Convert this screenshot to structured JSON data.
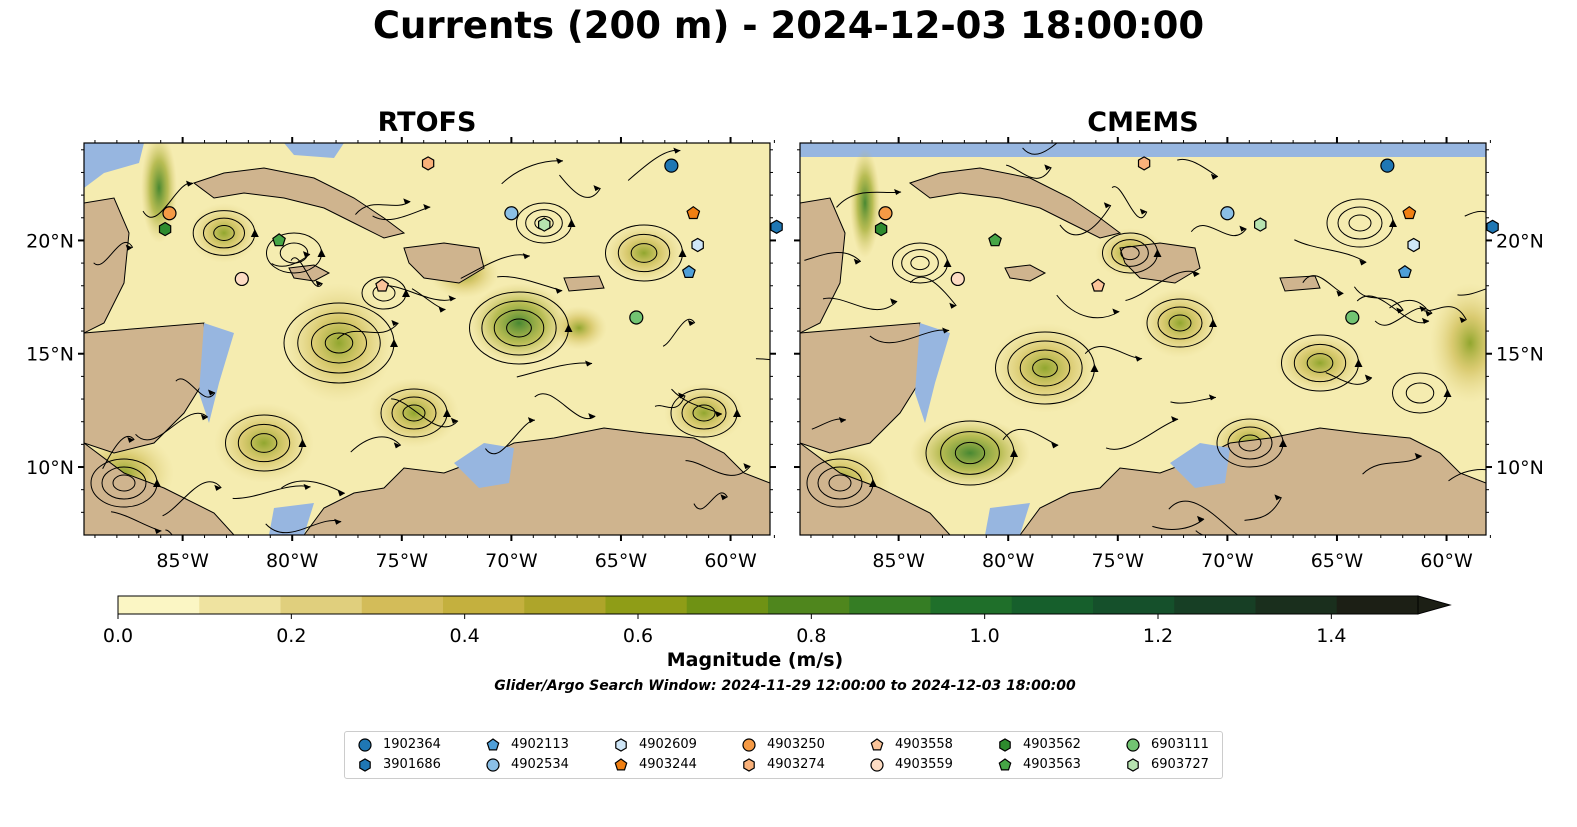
{
  "title": "Currents (200 m) - 2024-12-03 18:00:00",
  "panels": [
    {
      "title": "RTOFS"
    },
    {
      "title": "CMEMS"
    }
  ],
  "axes": {
    "lon_ticks": [
      "85°W",
      "80°W",
      "75°W",
      "70°W",
      "65°W",
      "60°W"
    ],
    "lat_ticks": [
      "20°N",
      "15°N",
      "10°N"
    ]
  },
  "colorbar": {
    "label": "Magnitude (m/s)",
    "ticks": [
      "0.0",
      "0.2",
      "0.4",
      "0.6",
      "0.8",
      "1.0",
      "1.2",
      "1.4"
    ],
    "range": [
      0.0,
      1.5
    ],
    "extend": "max",
    "colors": [
      "#fbf6c4",
      "#efe3a0",
      "#e0cf7d",
      "#d3bc59",
      "#c4b03e",
      "#aea52a",
      "#8f9d17",
      "#6f9214",
      "#4f861d",
      "#357d24",
      "#1f6f2a",
      "#165f2c",
      "#15502b",
      "#173f25",
      "#1a2f1d",
      "#1c1f15"
    ]
  },
  "search_window": "Glider/Argo Search Window: 2024-11-29 12:00:00 to 2024-12-03 18:00:00",
  "colors": {
    "ocean": "#97b6e0",
    "land": "#cfb48e",
    "weak_current": "#fbf6c4",
    "strong_current": "#1c1f15"
  },
  "floats": [
    {
      "id": "1902364",
      "marker": "circle",
      "color": "#1f77b4"
    },
    {
      "id": "3901686",
      "marker": "hexagon",
      "color": "#1f77b4"
    },
    {
      "id": "4902113",
      "marker": "pentagon",
      "color": "#4f9fd8"
    },
    {
      "id": "4902534",
      "marker": "circle",
      "color": "#8bbfe6"
    },
    {
      "id": "4902609",
      "marker": "hexagon",
      "color": "#cfe6f7"
    },
    {
      "id": "4903244",
      "marker": "pentagon",
      "color": "#f07f12"
    },
    {
      "id": "4903250",
      "marker": "circle",
      "color": "#f59a45"
    },
    {
      "id": "4903274",
      "marker": "hexagon",
      "color": "#f9b17a"
    },
    {
      "id": "4903558",
      "marker": "pentagon",
      "color": "#fbc499"
    },
    {
      "id": "4903559",
      "marker": "circle",
      "color": "#fddcc3"
    },
    {
      "id": "4903562",
      "marker": "hexagon",
      "color": "#2e8b2e"
    },
    {
      "id": "4903563",
      "marker": "pentagon",
      "color": "#46a546"
    },
    {
      "id": "6903111",
      "marker": "circle",
      "color": "#72c472"
    },
    {
      "id": "6903727",
      "marker": "hexagon",
      "color": "#b7e3b0"
    }
  ],
  "float_positions": [
    {
      "id": "1902364",
      "lon": -62.7,
      "lat": 23.3
    },
    {
      "id": "3901686",
      "lon": -57.9,
      "lat": 20.6
    },
    {
      "id": "4902113",
      "lon": -61.9,
      "lat": 18.6
    },
    {
      "id": "4902534",
      "lon": -70.0,
      "lat": 21.2
    },
    {
      "id": "4902609",
      "lon": -61.5,
      "lat": 19.8
    },
    {
      "id": "4903244",
      "lon": -61.7,
      "lat": 21.2
    },
    {
      "id": "4903250",
      "lon": -85.6,
      "lat": 21.2
    },
    {
      "id": "4903274",
      "lon": -73.8,
      "lat": 23.4
    },
    {
      "id": "4903558",
      "lon": -75.9,
      "lat": 18.0
    },
    {
      "id": "4903559",
      "lon": -82.3,
      "lat": 18.3
    },
    {
      "id": "4903562",
      "lon": -85.8,
      "lat": 20.5
    },
    {
      "id": "4903563",
      "lon": -80.6,
      "lat": 20.0
    },
    {
      "id": "6903111",
      "lon": -64.3,
      "lat": 16.6
    },
    {
      "id": "6903727",
      "lon": -68.5,
      "lat": 20.7
    }
  ]
}
